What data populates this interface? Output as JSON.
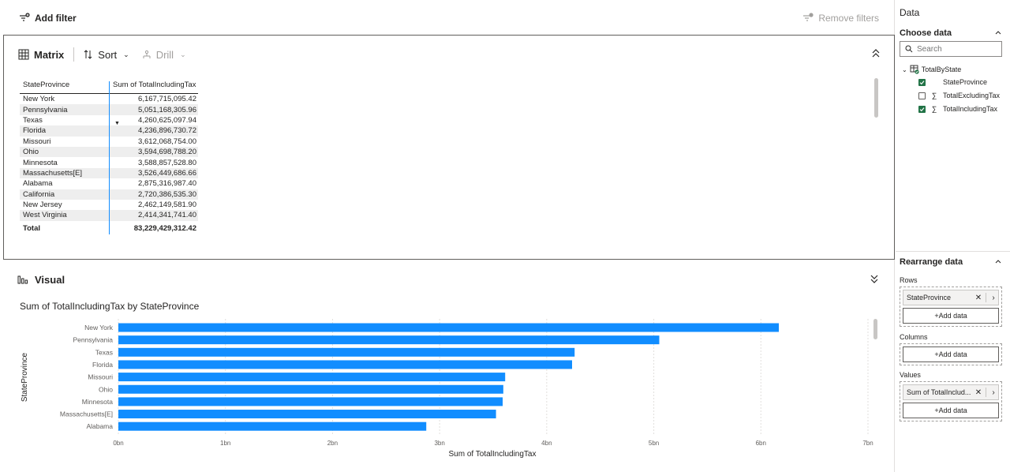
{
  "filterbar": {
    "add_filter": "Add filter",
    "remove_filters": "Remove filters"
  },
  "matrix": {
    "toolbar": {
      "title": "Matrix",
      "sort": "Sort",
      "drill": "Drill"
    },
    "headers": [
      "StateProvince",
      "Sum of TotalIncludingTax"
    ],
    "rows": [
      [
        "New York",
        "6,167,715,095.42"
      ],
      [
        "Pennsylvania",
        "5,051,168,305.96"
      ],
      [
        "Texas",
        "4,260,625,097.94"
      ],
      [
        "Florida",
        "4,236,896,730.72"
      ],
      [
        "Missouri",
        "3,612,068,754.00"
      ],
      [
        "Ohio",
        "3,594,698,788.20"
      ],
      [
        "Minnesota",
        "3,588,857,528.80"
      ],
      [
        "Massachusetts[E]",
        "3,526,449,686.66"
      ],
      [
        "Alabama",
        "2,875,316,987.40"
      ],
      [
        "California",
        "2,720,386,535.30"
      ],
      [
        "New Jersey",
        "2,462,149,581.90"
      ],
      [
        "West Virginia",
        "2,414,341,741.40"
      ]
    ],
    "total_label": "Total",
    "total_value": "83,229,429,312.42"
  },
  "visual": {
    "title": "Visual"
  },
  "chart_data": {
    "type": "bar",
    "orientation": "horizontal",
    "title": "Sum of TotalIncludingTax by StateProvince",
    "xlabel": "Sum of TotalIncludingTax",
    "ylabel": "StateProvince",
    "categories": [
      "New York",
      "Pennsylvania",
      "Texas",
      "Florida",
      "Missouri",
      "Ohio",
      "Minnesota",
      "Massachusetts[E]",
      "Alabama"
    ],
    "values": [
      6167715095.42,
      5051168305.96,
      4260625097.94,
      4236896730.72,
      3612068754.0,
      3594698788.2,
      3588857528.8,
      3526449686.66,
      2875316987.4
    ],
    "xlim": [
      0,
      7000000000
    ],
    "xticks": [
      0,
      1000000000,
      2000000000,
      3000000000,
      4000000000,
      5000000000,
      6000000000,
      7000000000
    ],
    "xtick_labels": [
      "0bn",
      "1bn",
      "2bn",
      "3bn",
      "4bn",
      "5bn",
      "6bn",
      "7bn"
    ],
    "grid": true,
    "bar_color": "#118DFF"
  },
  "pane": {
    "title": "Data",
    "choose_data": "Choose data",
    "search_placeholder": "Search",
    "table_name": "TotalByState",
    "fields": [
      {
        "name": "StateProvince",
        "checked": true,
        "sigma": false
      },
      {
        "name": "TotalExcludingTax",
        "checked": false,
        "sigma": true
      },
      {
        "name": "TotalIncludingTax",
        "checked": true,
        "sigma": true
      }
    ],
    "rearrange": "Rearrange data",
    "rows_label": "Rows",
    "rows_field": "StateProvince",
    "columns_label": "Columns",
    "values_label": "Values",
    "values_field": "Sum of TotalInclud...",
    "add_data": "+Add data",
    "accent_color": "#217346"
  }
}
